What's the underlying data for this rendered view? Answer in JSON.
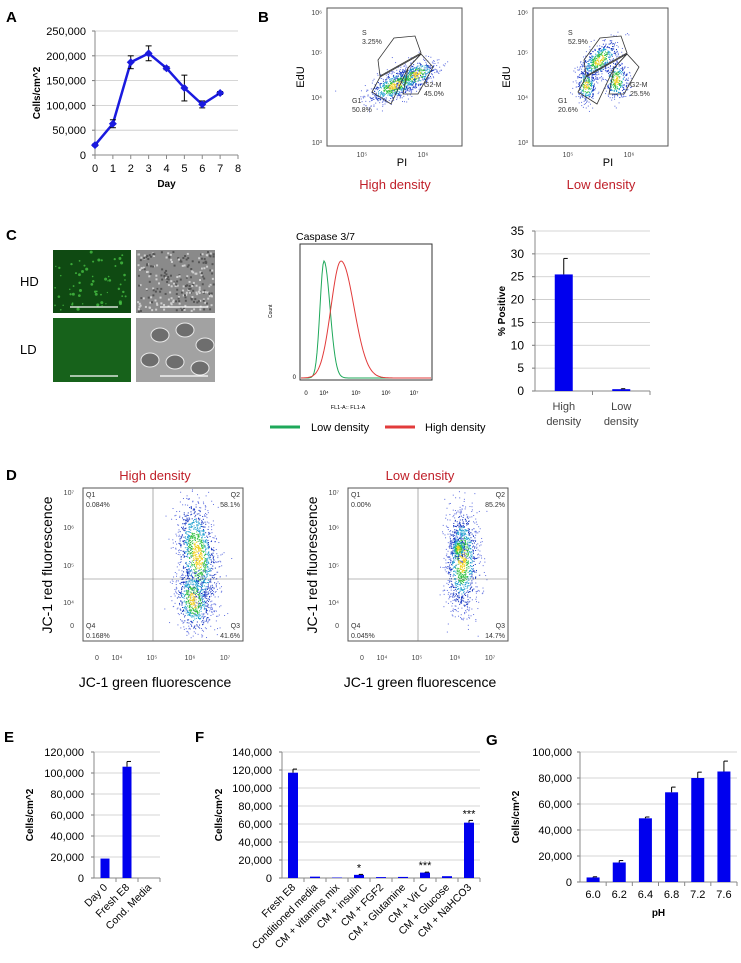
{
  "panels": {
    "A": "A",
    "B": "B",
    "C": "C",
    "D": "D",
    "E": "E",
    "F": "F",
    "G": "G"
  },
  "colors": {
    "bar": "#0000ee",
    "line": "#1a1adf",
    "green": "#1ea85a",
    "red": "#e23b3b",
    "label_red": "#c0202a",
    "grid": "#c8c8c8"
  },
  "panel_c": {
    "row_labels": [
      "HD",
      "LD"
    ],
    "histogram": {
      "title": "Caspase 3/7",
      "ylabel": "Count",
      "xlabel": "FL1-A:: FL1-A",
      "y_tick": "0",
      "x_ticks": [
        "0",
        "10⁴",
        "10⁵",
        "10⁶",
        "10⁷"
      ]
    },
    "legend": [
      {
        "label": "Low density",
        "color": "#1ea85a"
      },
      {
        "label": "High density",
        "color": "#e23b3b"
      }
    ]
  },
  "chart_data": [
    {
      "panel": "A",
      "type": "line",
      "xlabel": "Day",
      "ylabel": "Cells/cm^2",
      "xlim": [
        0,
        8
      ],
      "ylim": [
        0,
        250000
      ],
      "grid": true,
      "x": [
        0,
        1,
        2,
        3,
        4,
        5,
        6,
        7
      ],
      "y": [
        20000,
        63000,
        187000,
        205000,
        175000,
        135000,
        102000,
        125000
      ],
      "err": [
        2000,
        8000,
        13000,
        15000,
        3000,
        26000,
        7000,
        3000
      ],
      "xtick_labels": [
        "0",
        "1",
        "2",
        "3",
        "4",
        "5",
        "6",
        "7",
        "8"
      ],
      "ytick_labels": [
        "0",
        "50,000",
        "100,000",
        "150,000",
        "200,000",
        "250,000"
      ]
    },
    {
      "panel": "B",
      "type": "scatter",
      "title": "High density",
      "xlabel": "PI",
      "ylabel": "EdU",
      "xscale": "log",
      "yscale": "log",
      "xtick_labels": [
        "10⁵",
        "10⁶"
      ],
      "ytick_labels": [
        "10³",
        "10⁴",
        "10⁵",
        "10⁶"
      ],
      "gates": [
        {
          "name": "S",
          "pct": "3.25%"
        },
        {
          "name": "G1",
          "pct": "50.8%"
        },
        {
          "name": "G2-M",
          "pct": "45.0%"
        }
      ]
    },
    {
      "panel": "B",
      "type": "scatter",
      "title": "Low density",
      "xlabel": "PI",
      "ylabel": "EdU",
      "xscale": "log",
      "yscale": "log",
      "xtick_labels": [
        "10⁵",
        "10⁶"
      ],
      "ytick_labels": [
        "10³",
        "10⁴",
        "10⁵",
        "10⁶"
      ],
      "gates": [
        {
          "name": "S",
          "pct": "52.9%"
        },
        {
          "name": "G1",
          "pct": "20.6%"
        },
        {
          "name": "G2-M",
          "pct": "25.5%"
        }
      ]
    },
    {
      "panel": "C",
      "type": "bar",
      "ylabel": "% Positive",
      "ylim": [
        0,
        35
      ],
      "grid": true,
      "categories": [
        "High density",
        "Low density"
      ],
      "category_lines": [
        [
          "High",
          "density"
        ],
        [
          "Low",
          "density"
        ]
      ],
      "values": [
        25.5,
        0.4
      ],
      "err": [
        3.5,
        0.1
      ],
      "ytick_labels": [
        "0",
        "5",
        "10",
        "15",
        "20",
        "25",
        "30",
        "35"
      ]
    },
    {
      "panel": "D",
      "type": "scatter",
      "title": "High density",
      "xlabel": "JC-1 green fluorescence",
      "ylabel": "JC-1 red fluorescence",
      "xtick_labels": [
        "0",
        "10⁴",
        "10⁵",
        "10⁶",
        "10⁷"
      ],
      "ytick_labels": [
        "0",
        "10⁴",
        "10⁵",
        "10⁶",
        "10⁷"
      ],
      "quadrants": [
        {
          "name": "Q1",
          "pct": "0.084%"
        },
        {
          "name": "Q2",
          "pct": "58.1%"
        },
        {
          "name": "Q3",
          "pct": "41.6%"
        },
        {
          "name": "Q4",
          "pct": "0.168%"
        }
      ]
    },
    {
      "panel": "D",
      "type": "scatter",
      "title": "Low density",
      "xlabel": "JC-1 green fluorescence",
      "ylabel": "JC-1 red fluorescence",
      "xtick_labels": [
        "0",
        "10⁴",
        "10⁵",
        "10⁶",
        "10⁷"
      ],
      "ytick_labels": [
        "0",
        "10⁴",
        "10⁵",
        "10⁶",
        "10⁷"
      ],
      "quadrants": [
        {
          "name": "Q1",
          "pct": "0.00%"
        },
        {
          "name": "Q2",
          "pct": "85.2%"
        },
        {
          "name": "Q3",
          "pct": "14.7%"
        },
        {
          "name": "Q4",
          "pct": "0.045%"
        }
      ]
    },
    {
      "panel": "E",
      "type": "bar",
      "ylabel": "Cells/cm^2",
      "ylim": [
        0,
        120000
      ],
      "grid": true,
      "categories": [
        "Day 0",
        "Fresh E8",
        "Cond. Media"
      ],
      "values": [
        18500,
        106000,
        0
      ],
      "err": [
        0,
        5000,
        0
      ],
      "ytick_labels": [
        "0",
        "20,000",
        "40,000",
        "60,000",
        "80,000",
        "100,000",
        "120,000"
      ]
    },
    {
      "panel": "F",
      "type": "bar",
      "ylabel": "Cells/cm^2",
      "ylim": [
        0,
        140000
      ],
      "grid": true,
      "categories": [
        "Fresh E8",
        "Conditioned media",
        "CM + vitamins mix",
        "CM + insulin",
        "CM + FGF2",
        "CM + Glutamine",
        "CM + Vit C",
        "CM + Glucose",
        "CM + NaHCO3"
      ],
      "values": [
        117000,
        1500,
        500,
        3500,
        1000,
        1200,
        6000,
        2000,
        61500
      ],
      "err": [
        4000,
        0,
        0,
        500,
        0,
        0,
        500,
        0,
        2500
      ],
      "annotations": [
        "",
        "",
        "",
        "*",
        "",
        "",
        "***",
        "",
        "***"
      ],
      "ytick_labels": [
        "0",
        "20,000",
        "40,000",
        "60,000",
        "80,000",
        "100,000",
        "120,000",
        "140,000"
      ]
    },
    {
      "panel": "G",
      "type": "bar",
      "xlabel": "pH",
      "ylabel": "Cells/cm^2",
      "ylim": [
        0,
        100000
      ],
      "grid": true,
      "categories": [
        "6.0",
        "6.2",
        "6.4",
        "6.8",
        "7.2",
        "7.6"
      ],
      "values": [
        3500,
        15000,
        49000,
        69000,
        80000,
        85000
      ],
      "err": [
        500,
        1500,
        1000,
        4000,
        4500,
        8000
      ],
      "ytick_labels": [
        "0",
        "20,000",
        "40,000",
        "60,000",
        "80,000",
        "100,000"
      ]
    }
  ]
}
